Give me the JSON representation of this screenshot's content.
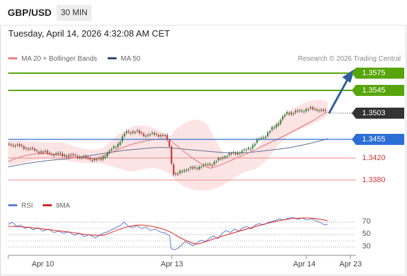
{
  "header": {
    "symbol": "GBP/USD",
    "timeframe": "30 MIN"
  },
  "datetime": "Tuesday, April 14, 2026 4:32:08 AM CET",
  "legend": {
    "ma20_label": "MA 20 + Bollinger Bands",
    "ma50_label": "MA 50",
    "credit": "Research © 2026 Trading Central"
  },
  "levels": {
    "r2": "1.3575",
    "r1": "1.3545",
    "last": "1.3503",
    "pivot": "1.3455",
    "s1": "1.3420",
    "s2": "1.3380"
  },
  "rsi": {
    "rsi_label": "RSI",
    "ma_label": "9MA",
    "levels": [
      "70",
      "50",
      "30"
    ]
  },
  "xaxis": {
    "labels": [
      "Apr 10",
      "Apr 13",
      "Apr 14",
      "Apr 23"
    ]
  },
  "colors": {
    "resistance": "#57a50b",
    "pivot": "#2b6fd6",
    "support": "#d23030",
    "ma20": "#f08080",
    "ma50": "#2e4a7a",
    "rsi": "#5a7fd4",
    "rsi_ma": "#e02020",
    "bands_fill": "#fde4e4",
    "candle_up": "#2f8a2f",
    "candle_down": "#d03030"
  }
}
